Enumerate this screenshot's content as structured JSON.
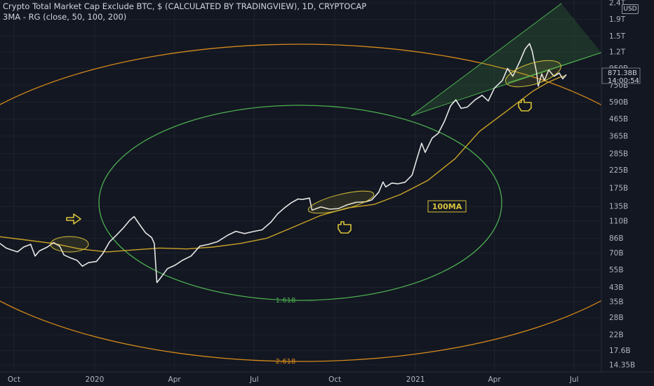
{
  "header": {
    "title": "Crypto Total Market Cap Exclude BTC, $ (CALCULATED BY TRADINGVIEW), 1D, CRYPTOCAP",
    "indicator": "3MA - RG (close, 50, 100, 200)"
  },
  "price_scale": {
    "currency_badge": "USD",
    "last_price": "871.38B",
    "countdown": "14:00:54"
  },
  "colors": {
    "background": "#131722",
    "price_line": "#e6e6e6",
    "ma_line": "#c9a227",
    "green_ellipse": "#4caf50",
    "orange_ellipse": "#d58a1a",
    "annotation_yellow": "#d8c23a",
    "axis_text": "#b2b5be"
  },
  "chart_data": {
    "type": "line",
    "title": "Crypto Total Market Cap Exclude BTC, $ (CALCULATED BY TRADINGVIEW), 1D, CRYPTOCAP",
    "xlabel": "",
    "ylabel": "",
    "scale": "log",
    "ylim": [
      13.0,
      2500.0
    ],
    "xlim": [
      "2019-09-15",
      "2021-08-01"
    ],
    "x_ticks": [
      {
        "date": "2019-10-01",
        "label": "Oct"
      },
      {
        "date": "2020-01-01",
        "label": "2020"
      },
      {
        "date": "2020-04-01",
        "label": "Apr"
      },
      {
        "date": "2020-07-01",
        "label": "Jul"
      },
      {
        "date": "2020-10-01",
        "label": "Oct"
      },
      {
        "date": "2021-01-01",
        "label": "2021"
      },
      {
        "date": "2021-04-01",
        "label": "Apr"
      },
      {
        "date": "2021-07-01",
        "label": "Jul"
      }
    ],
    "y_ticks": [
      {
        "value": 2400,
        "label": "2.4T"
      },
      {
        "value": 1900,
        "label": "1.9T"
      },
      {
        "value": 1500,
        "label": "1.5T"
      },
      {
        "value": 1200,
        "label": "1.2T"
      },
      {
        "value": 950,
        "label": "950B"
      },
      {
        "value": 750,
        "label": "750B"
      },
      {
        "value": 590,
        "label": "590B"
      },
      {
        "value": 465,
        "label": "465B"
      },
      {
        "value": 365,
        "label": "365B"
      },
      {
        "value": 285,
        "label": "285B"
      },
      {
        "value": 225,
        "label": "225B"
      },
      {
        "value": 175,
        "label": "175B"
      },
      {
        "value": 135,
        "label": "135B"
      },
      {
        "value": 110,
        "label": "110B"
      },
      {
        "value": 86,
        "label": "86B"
      },
      {
        "value": 70,
        "label": "70B"
      },
      {
        "value": 55,
        "label": "55B"
      },
      {
        "value": 43,
        "label": "43B"
      },
      {
        "value": 35,
        "label": "35B"
      },
      {
        "value": 28,
        "label": "28B"
      },
      {
        "value": 22,
        "label": "22B"
      },
      {
        "value": 17.6,
        "label": "17.6B"
      },
      {
        "value": 14.35,
        "label": "14.35B"
      }
    ],
    "series": [
      {
        "role": "price",
        "color": "#e6e6e6",
        "points": [
          [
            "2019-09-15",
            80
          ],
          [
            "2019-09-22",
            75
          ],
          [
            "2019-09-28",
            73
          ],
          [
            "2019-10-05",
            71
          ],
          [
            "2019-10-12",
            76
          ],
          [
            "2019-10-20",
            79
          ],
          [
            "2019-10-25",
            67
          ],
          [
            "2019-10-30",
            72
          ],
          [
            "2019-11-08",
            76
          ],
          [
            "2019-11-15",
            81
          ],
          [
            "2019-11-22",
            77
          ],
          [
            "2019-11-27",
            68
          ],
          [
            "2019-12-05",
            65
          ],
          [
            "2019-12-12",
            63
          ],
          [
            "2019-12-18",
            58
          ],
          [
            "2019-12-25",
            61
          ],
          [
            "2020-01-03",
            62
          ],
          [
            "2020-01-10",
            69
          ],
          [
            "2020-01-18",
            82
          ],
          [
            "2020-01-25",
            89
          ],
          [
            "2020-02-03",
            100
          ],
          [
            "2020-02-10",
            111
          ],
          [
            "2020-02-15",
            117
          ],
          [
            "2020-02-21",
            105
          ],
          [
            "2020-02-28",
            93
          ],
          [
            "2020-03-06",
            87
          ],
          [
            "2020-03-09",
            80
          ],
          [
            "2020-03-12",
            46
          ],
          [
            "2020-03-16",
            49
          ],
          [
            "2020-03-24",
            56
          ],
          [
            "2020-04-02",
            59
          ],
          [
            "2020-04-10",
            63
          ],
          [
            "2020-04-20",
            67
          ],
          [
            "2020-04-30",
            77
          ],
          [
            "2020-05-10",
            79
          ],
          [
            "2020-05-20",
            82
          ],
          [
            "2020-06-01",
            90
          ],
          [
            "2020-06-10",
            95
          ],
          [
            "2020-06-20",
            92
          ],
          [
            "2020-07-01",
            95
          ],
          [
            "2020-07-10",
            97
          ],
          [
            "2020-07-20",
            108
          ],
          [
            "2020-07-28",
            122
          ],
          [
            "2020-08-05",
            133
          ],
          [
            "2020-08-12",
            142
          ],
          [
            "2020-08-20",
            150
          ],
          [
            "2020-08-25",
            149
          ],
          [
            "2020-09-02",
            152
          ],
          [
            "2020-09-05",
            128
          ],
          [
            "2020-09-15",
            134
          ],
          [
            "2020-09-25",
            130
          ],
          [
            "2020-10-05",
            131
          ],
          [
            "2020-10-15",
            138
          ],
          [
            "2020-10-25",
            143
          ],
          [
            "2020-11-05",
            144
          ],
          [
            "2020-11-12",
            148
          ],
          [
            "2020-11-20",
            165
          ],
          [
            "2020-11-25",
            191
          ],
          [
            "2020-11-28",
            178
          ],
          [
            "2020-12-05",
            188
          ],
          [
            "2020-12-12",
            186
          ],
          [
            "2020-12-20",
            190
          ],
          [
            "2020-12-28",
            210
          ],
          [
            "2021-01-03",
            270
          ],
          [
            "2021-01-08",
            330
          ],
          [
            "2021-01-12",
            290
          ],
          [
            "2021-01-20",
            355
          ],
          [
            "2021-01-27",
            380
          ],
          [
            "2021-02-03",
            450
          ],
          [
            "2021-02-10",
            560
          ],
          [
            "2021-02-16",
            610
          ],
          [
            "2021-02-22",
            540
          ],
          [
            "2021-03-01",
            550
          ],
          [
            "2021-03-10",
            610
          ],
          [
            "2021-03-18",
            650
          ],
          [
            "2021-03-25",
            600
          ],
          [
            "2021-04-01",
            720
          ],
          [
            "2021-04-10",
            800
          ],
          [
            "2021-04-16",
            950
          ],
          [
            "2021-04-22",
            850
          ],
          [
            "2021-04-30",
            1050
          ],
          [
            "2021-05-06",
            1250
          ],
          [
            "2021-05-11",
            1350
          ],
          [
            "2021-05-14",
            1220
          ],
          [
            "2021-05-19",
            900
          ],
          [
            "2021-05-21",
            740
          ],
          [
            "2021-05-25",
            880
          ],
          [
            "2021-05-28",
            800
          ],
          [
            "2021-06-02",
            930
          ],
          [
            "2021-06-08",
            850
          ],
          [
            "2021-06-14",
            890
          ],
          [
            "2021-06-18",
            820
          ],
          [
            "2021-06-22",
            871.38
          ]
        ]
      },
      {
        "role": "moving_average",
        "color": "#c9a227",
        "points": [
          [
            "2019-09-15",
            88
          ],
          [
            "2019-10-15",
            84
          ],
          [
            "2019-11-15",
            80
          ],
          [
            "2019-12-15",
            74
          ],
          [
            "2020-01-15",
            71
          ],
          [
            "2020-02-15",
            73
          ],
          [
            "2020-03-15",
            75
          ],
          [
            "2020-04-15",
            74
          ],
          [
            "2020-05-15",
            76
          ],
          [
            "2020-06-15",
            80
          ],
          [
            "2020-07-15",
            86
          ],
          [
            "2020-08-15",
            101
          ],
          [
            "2020-09-15",
            119
          ],
          [
            "2020-10-15",
            132
          ],
          [
            "2020-11-15",
            139
          ],
          [
            "2020-12-15",
            160
          ],
          [
            "2021-01-15",
            195
          ],
          [
            "2021-02-15",
            265
          ],
          [
            "2021-03-15",
            390
          ],
          [
            "2021-04-15",
            520
          ],
          [
            "2021-05-15",
            690
          ],
          [
            "2021-06-01",
            780
          ],
          [
            "2021-06-15",
            840
          ],
          [
            "2021-06-22",
            860
          ]
        ]
      }
    ],
    "annotations": {
      "labels": [
        "100MA",
        "1.618",
        "2.618"
      ]
    }
  }
}
